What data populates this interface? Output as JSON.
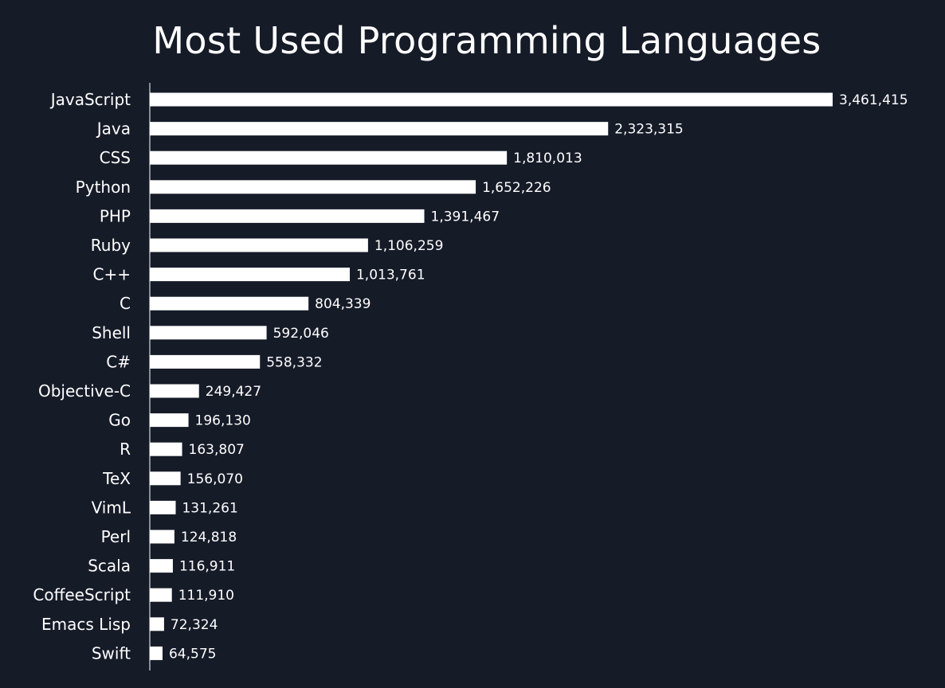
{
  "colors": {
    "background": "#161b28",
    "bar": "#ffffff",
    "text": "#ffffff"
  },
  "chart_data": {
    "type": "bar",
    "orientation": "horizontal",
    "title": "Most Used Programming Languages",
    "xlabel": "",
    "ylabel": "",
    "grid": false,
    "legend": "none",
    "xlim": [
      0,
      3461415
    ],
    "categories": [
      "JavaScript",
      "Java",
      "CSS",
      "Python",
      "PHP",
      "Ruby",
      "C++",
      "C",
      "Shell",
      "C#",
      "Objective-C",
      "Go",
      "R",
      "TeX",
      "VimL",
      "Perl",
      "Scala",
      "CoffeeScript",
      "Emacs Lisp",
      "Swift"
    ],
    "values": [
      3461415,
      2323315,
      1810013,
      1652226,
      1391467,
      1106259,
      1013761,
      804339,
      592046,
      558332,
      249427,
      196130,
      163807,
      156070,
      131261,
      124818,
      116911,
      111910,
      72324,
      64575
    ],
    "value_labels": [
      "3,461,415",
      "2,323,315",
      "1,810,013",
      "1,652,226",
      "1,391,467",
      "1,106,259",
      "1,013,761",
      "804,339",
      "592,046",
      "558,332",
      "249,427",
      "196,130",
      "163,807",
      "156,070",
      "131,261",
      "124,818",
      "116,911",
      "111,910",
      "72,324",
      "64,575"
    ]
  }
}
